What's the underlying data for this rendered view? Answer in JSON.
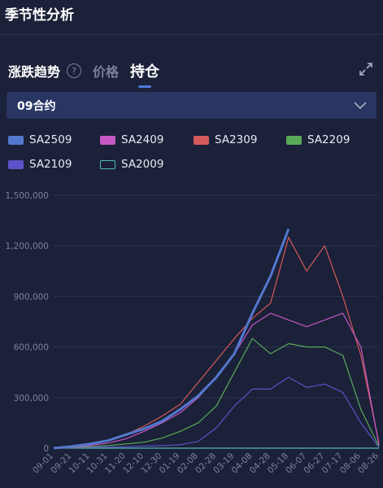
{
  "header": {
    "title": "季节性分析"
  },
  "tabs": [
    {
      "label": "涨跌趋势"
    },
    {
      "label": "价格"
    },
    {
      "label": "持仓"
    }
  ],
  "help_icon_glyph": "?",
  "contract_select": {
    "value": "09合约"
  },
  "colors": {
    "SA2509": "#5478cf",
    "SA2409": "#c659c6",
    "SA2309": "#d45a5a",
    "SA2209": "#59a959",
    "SA2109": "#5c52c9",
    "SA2009": "#56b7b7"
  },
  "chart_data": {
    "type": "line",
    "title": "",
    "xlabel": "",
    "ylabel": "",
    "ylim": [
      0,
      1500000
    ],
    "yticks": [
      "0",
      "300,000",
      "600,000",
      "900,000",
      "1,200,000",
      "1,500,000"
    ],
    "yticks_values": [
      0,
      300000,
      600000,
      900000,
      1200000,
      1500000
    ],
    "categories": [
      "09-01",
      "09-21",
      "10-11",
      "10-31",
      "11-20",
      "12-10",
      "12-30",
      "01-19",
      "02-08",
      "02-28",
      "03-19",
      "04-08",
      "04-28",
      "05-18",
      "06-07",
      "06-27",
      "07-17",
      "08-06",
      "08-26"
    ],
    "grid": true,
    "legend_position": "top",
    "series": [
      {
        "name": "SA2509",
        "values": [
          0,
          10000,
          25000,
          45000,
          80000,
          115000,
          160000,
          230000,
          310000,
          420000,
          560000,
          800000,
          1020000,
          1300000,
          null,
          null,
          null,
          null,
          null
        ]
      },
      {
        "name": "SA2409",
        "values": [
          0,
          5000,
          15000,
          30000,
          55000,
          100000,
          150000,
          210000,
          300000,
          420000,
          560000,
          730000,
          800000,
          760000,
          720000,
          760000,
          800000,
          600000,
          20000
        ]
      },
      {
        "name": "SA2309",
        "values": [
          0,
          10000,
          25000,
          45000,
          80000,
          130000,
          190000,
          260000,
          390000,
          520000,
          650000,
          770000,
          860000,
          1250000,
          1050000,
          1200000,
          900000,
          550000,
          30000
        ]
      },
      {
        "name": "SA2209",
        "values": [
          0,
          3000,
          8000,
          15000,
          25000,
          35000,
          60000,
          100000,
          150000,
          250000,
          450000,
          650000,
          560000,
          620000,
          600000,
          600000,
          550000,
          230000,
          10000
        ]
      },
      {
        "name": "SA2109",
        "values": [
          0,
          2000,
          4000,
          6000,
          8000,
          12000,
          15000,
          20000,
          40000,
          120000,
          250000,
          350000,
          350000,
          420000,
          360000,
          380000,
          330000,
          150000,
          5000
        ]
      },
      {
        "name": "SA2009",
        "values": [
          0,
          0,
          0,
          0,
          0,
          0,
          0,
          0,
          0,
          0,
          0,
          0,
          0,
          0,
          0,
          0,
          0,
          0,
          0
        ]
      }
    ]
  }
}
